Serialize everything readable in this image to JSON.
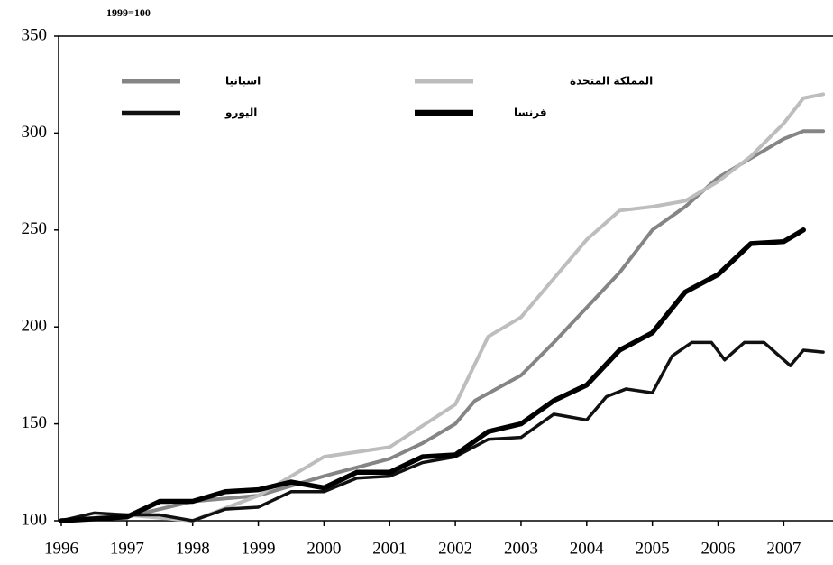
{
  "chart_data": {
    "type": "line",
    "title": "1999=100",
    "xlim": [
      1996,
      2007.75
    ],
    "xticks": [
      1996,
      1997,
      1998,
      1999,
      2000,
      2001,
      2002,
      2003,
      2004,
      2005,
      2006,
      2007
    ],
    "ylim": [
      100,
      350
    ],
    "yticks": [
      100,
      150,
      200,
      250,
      300,
      350
    ],
    "series": [
      {
        "name": "اسبانيا",
        "color": "#858585",
        "x": [
          1996,
          1997,
          1998,
          1999,
          2000,
          2001,
          2001.5,
          2002,
          2002.3,
          2003,
          2003.5,
          2004,
          2004.5,
          2005,
          2005.5,
          2006,
          2006.5,
          2007,
          2007.3,
          2007.6
        ],
        "values": [
          100,
          102,
          110,
          113,
          123,
          132,
          140,
          150,
          162,
          175,
          192,
          210,
          228,
          250,
          262,
          277,
          287,
          297,
          301,
          301
        ]
      },
      {
        "name": "المملكة المتحدة",
        "color": "#bdbdbd",
        "x": [
          1996,
          1997,
          1998,
          1999,
          2000,
          2001,
          2002,
          2002.5,
          2003,
          2003.5,
          2004,
          2004.5,
          2005,
          2005.5,
          2006,
          2006.5,
          2007,
          2007.3,
          2007.6
        ],
        "values": [
          100,
          103,
          100,
          113,
          133,
          138,
          160,
          195,
          205,
          225,
          245,
          260,
          262,
          265,
          275,
          288,
          305,
          318,
          320
        ]
      },
      {
        "name": "اليورو",
        "color": "#111111",
        "x": [
          1996,
          1996.5,
          1997,
          1997.5,
          1998,
          1998.5,
          1999,
          1999.5,
          2000,
          2000.5,
          2001,
          2001.5,
          2002,
          2002.5,
          2003,
          2003.5,
          2004,
          2004.3,
          2004.6,
          2005,
          2005.3,
          2005.6,
          2005.9,
          2006.1,
          2006.4,
          2006.7,
          2007,
          2007.1,
          2007.3,
          2007.6
        ],
        "values": [
          100,
          104,
          103,
          103,
          100,
          106,
          107,
          115,
          115,
          122,
          123,
          130,
          133,
          142,
          143,
          155,
          152,
          164,
          168,
          166,
          185,
          192,
          192,
          183,
          192,
          192,
          183,
          180,
          188,
          187
        ]
      },
      {
        "name": "فرنسا",
        "color": "#000000",
        "x": [
          1996,
          1997,
          1997.5,
          1998,
          1998.5,
          1999,
          1999.5,
          2000,
          2000.5,
          2001,
          2001.5,
          2002,
          2002.5,
          2003,
          2003.5,
          2004,
          2004.5,
          2005,
          2005.5,
          2006,
          2006.5,
          2007,
          2007.3
        ],
        "values": [
          100,
          102,
          110,
          110,
          115,
          116,
          120,
          117,
          125,
          125,
          133,
          134,
          146,
          150,
          162,
          170,
          188,
          197,
          218,
          227,
          243,
          244,
          250
        ]
      }
    ]
  }
}
